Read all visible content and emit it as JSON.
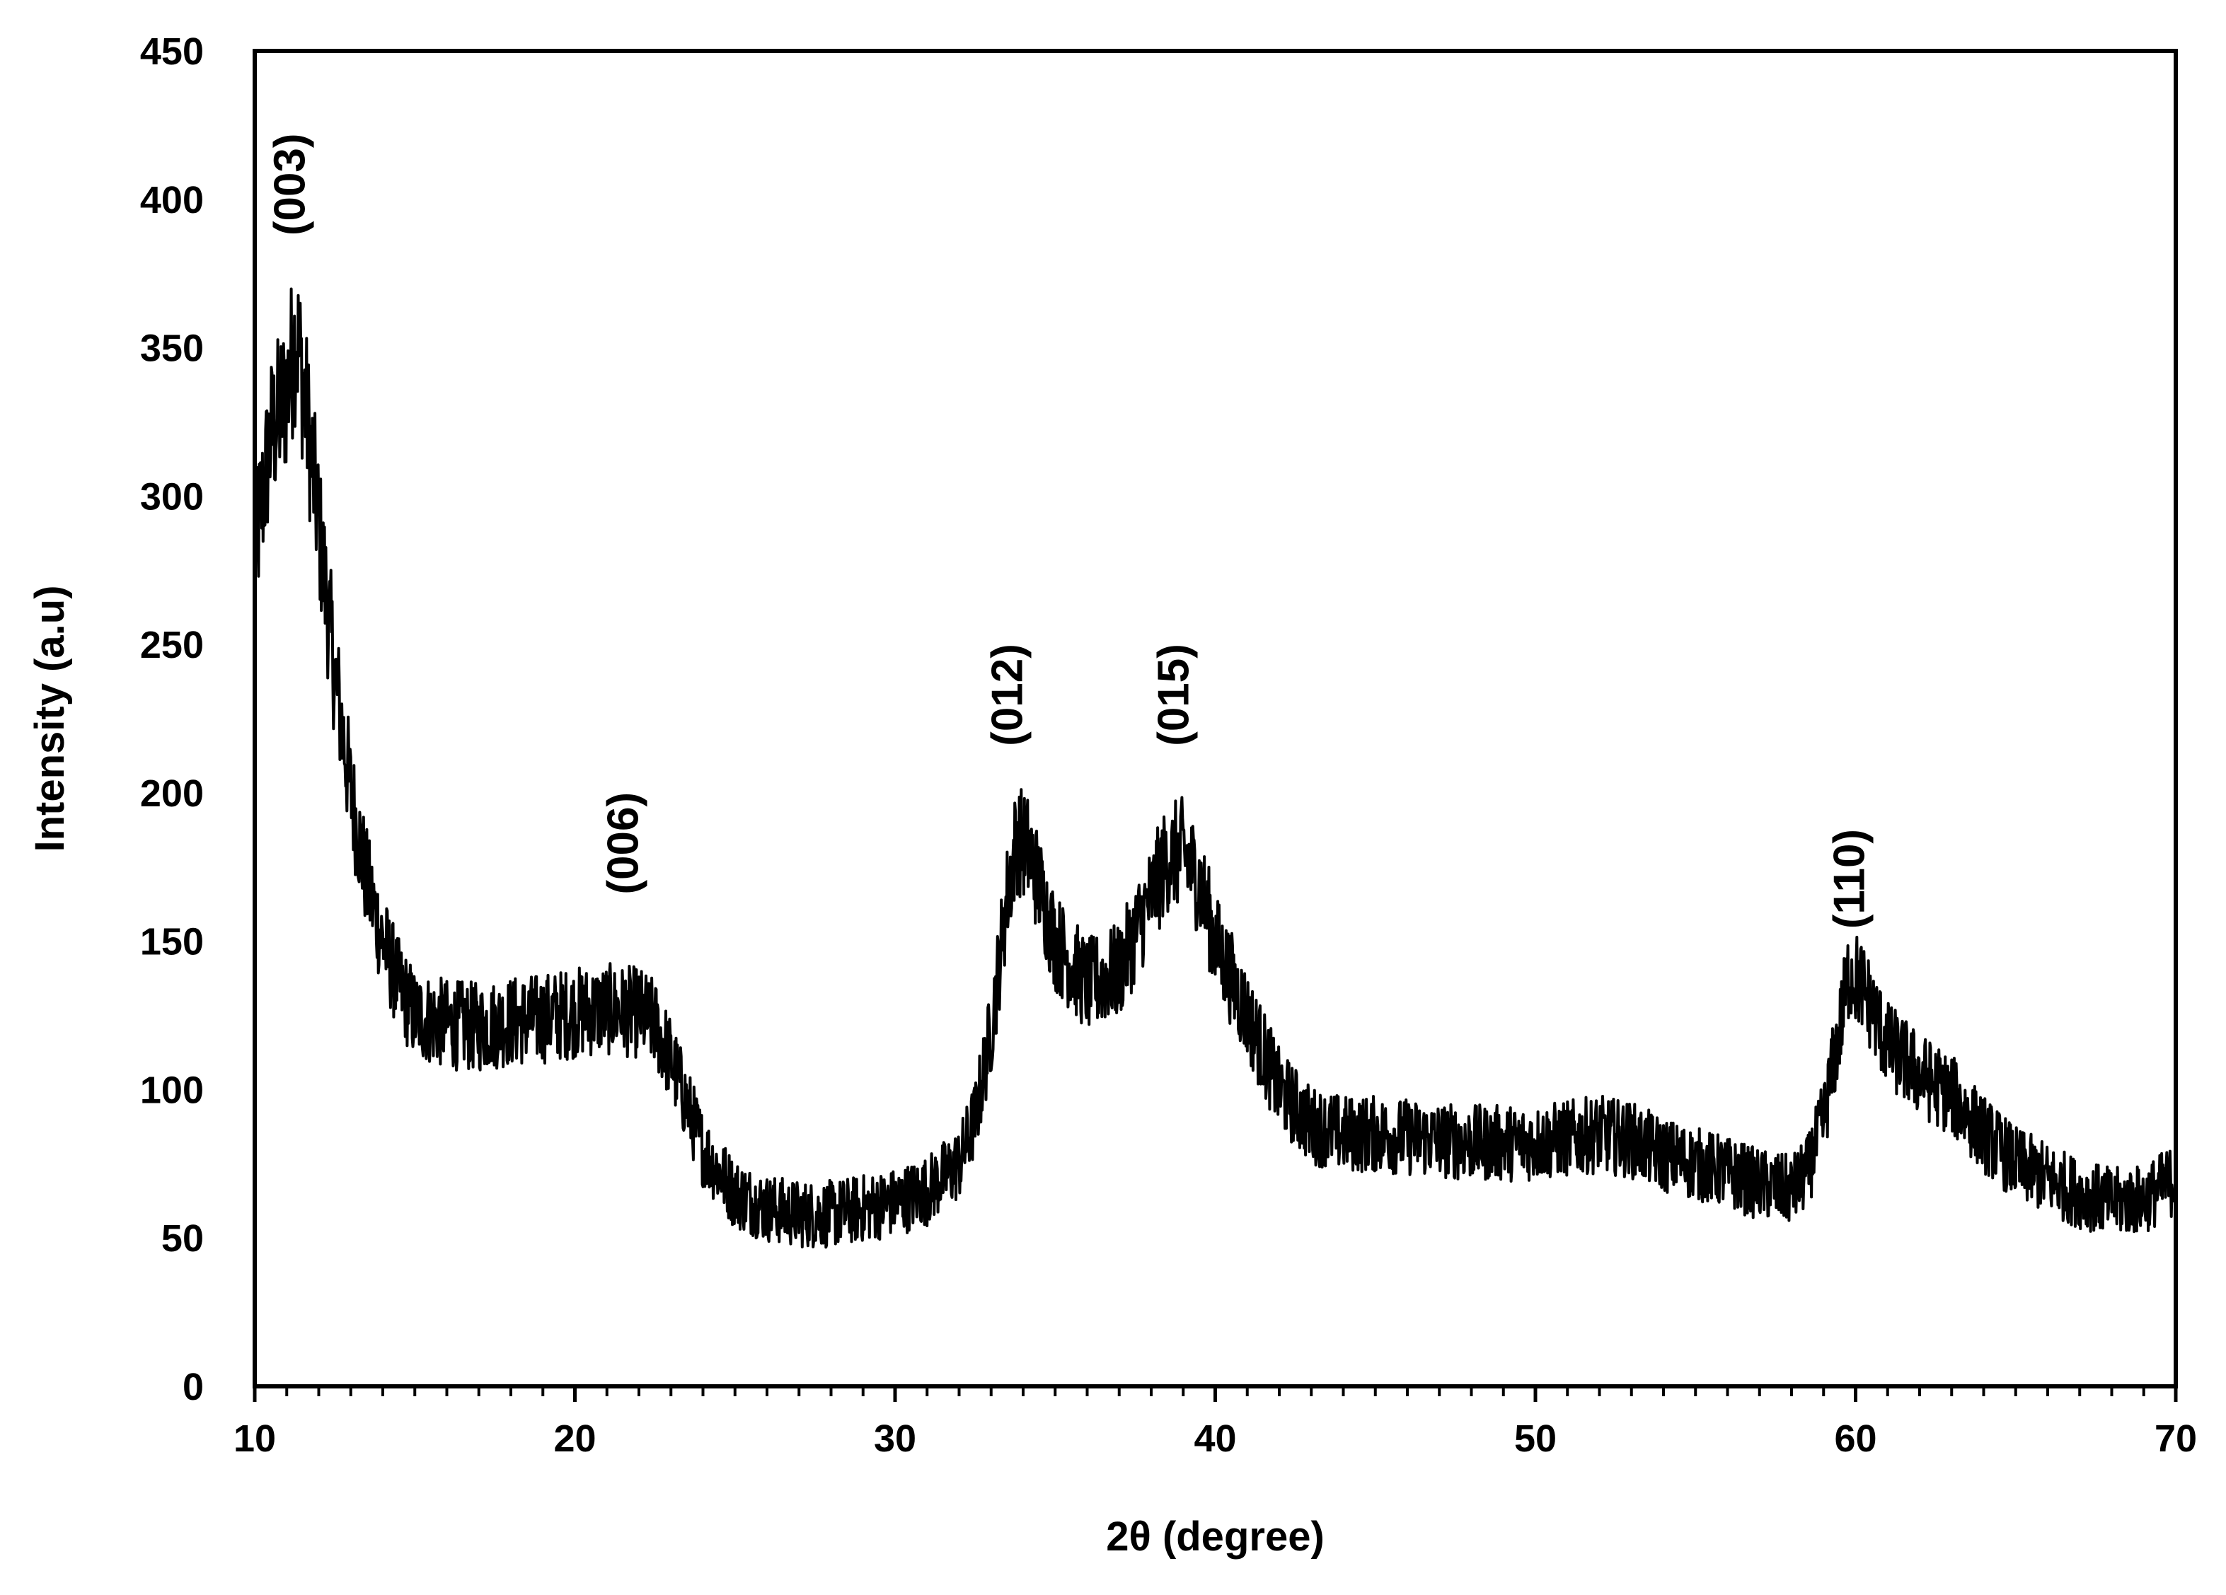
{
  "chart_data": {
    "type": "line",
    "title": "",
    "xlabel": "2θ (degree)",
    "ylabel": "Intensity (a.u)",
    "xlim": [
      10,
      70
    ],
    "ylim": [
      0,
      450
    ],
    "x_ticks": [
      10,
      20,
      30,
      40,
      50,
      60,
      70
    ],
    "x_tick_labels": [
      "10",
      "20",
      "30",
      "40",
      "50",
      "60",
      "70"
    ],
    "x_minor_step": 1,
    "y_ticks": [
      0,
      50,
      100,
      150,
      200,
      250,
      300,
      350,
      400,
      450
    ],
    "y_tick_labels": [
      "0",
      "50",
      "100",
      "150",
      "200",
      "250",
      "300",
      "350",
      "400",
      "450"
    ],
    "grid": false,
    "legend": "none",
    "series": [
      {
        "color": "#000000",
        "x": [
          10,
          10.5,
          11,
          11.3,
          11.6,
          12,
          12.5,
          13,
          13.5,
          14,
          14.5,
          15,
          16,
          17,
          18,
          19,
          20,
          21,
          22,
          22.5,
          23,
          23.5,
          24,
          25,
          26,
          27,
          28,
          29,
          30,
          31,
          32,
          32.5,
          33,
          33.5,
          33.8,
          34.2,
          35,
          36,
          37,
          38,
          38.5,
          39,
          39.5,
          40,
          41,
          42,
          43,
          44,
          45,
          46,
          48,
          50,
          52,
          53,
          54,
          55,
          56,
          57,
          58,
          58.5,
          59,
          59.5,
          59.8,
          60.2,
          61,
          62,
          63,
          64,
          65,
          66,
          67,
          68,
          69,
          70
        ],
        "y": [
          280,
          320,
          335,
          355,
          330,
          290,
          240,
          200,
          170,
          150,
          135,
          125,
          122,
          121,
          123,
          124,
          126,
          127,
          126,
          122,
          110,
          95,
          80,
          65,
          60,
          58,
          58,
          60,
          62,
          66,
          75,
          90,
          120,
          165,
          185,
          180,
          150,
          135,
          140,
          165,
          178,
          180,
          170,
          150,
          125,
          100,
          88,
          85,
          85,
          84,
          82,
          82,
          85,
          83,
          78,
          75,
          72,
          68,
          66,
          72,
          90,
          120,
          140,
          135,
          115,
          105,
          98,
          85,
          75,
          70,
          65,
          62,
          63,
          70
        ]
      }
    ],
    "annotations": [
      {
        "text": "(003)",
        "x": 11.2,
        "y": 405
      },
      {
        "text": "(006)",
        "x": 21.6,
        "y": 183
      },
      {
        "text": "(012)",
        "x": 33.6,
        "y": 233
      },
      {
        "text": "(015)",
        "x": 38.8,
        "y": 233
      },
      {
        "text": "(110)",
        "x": 59.9,
        "y": 171
      }
    ]
  }
}
